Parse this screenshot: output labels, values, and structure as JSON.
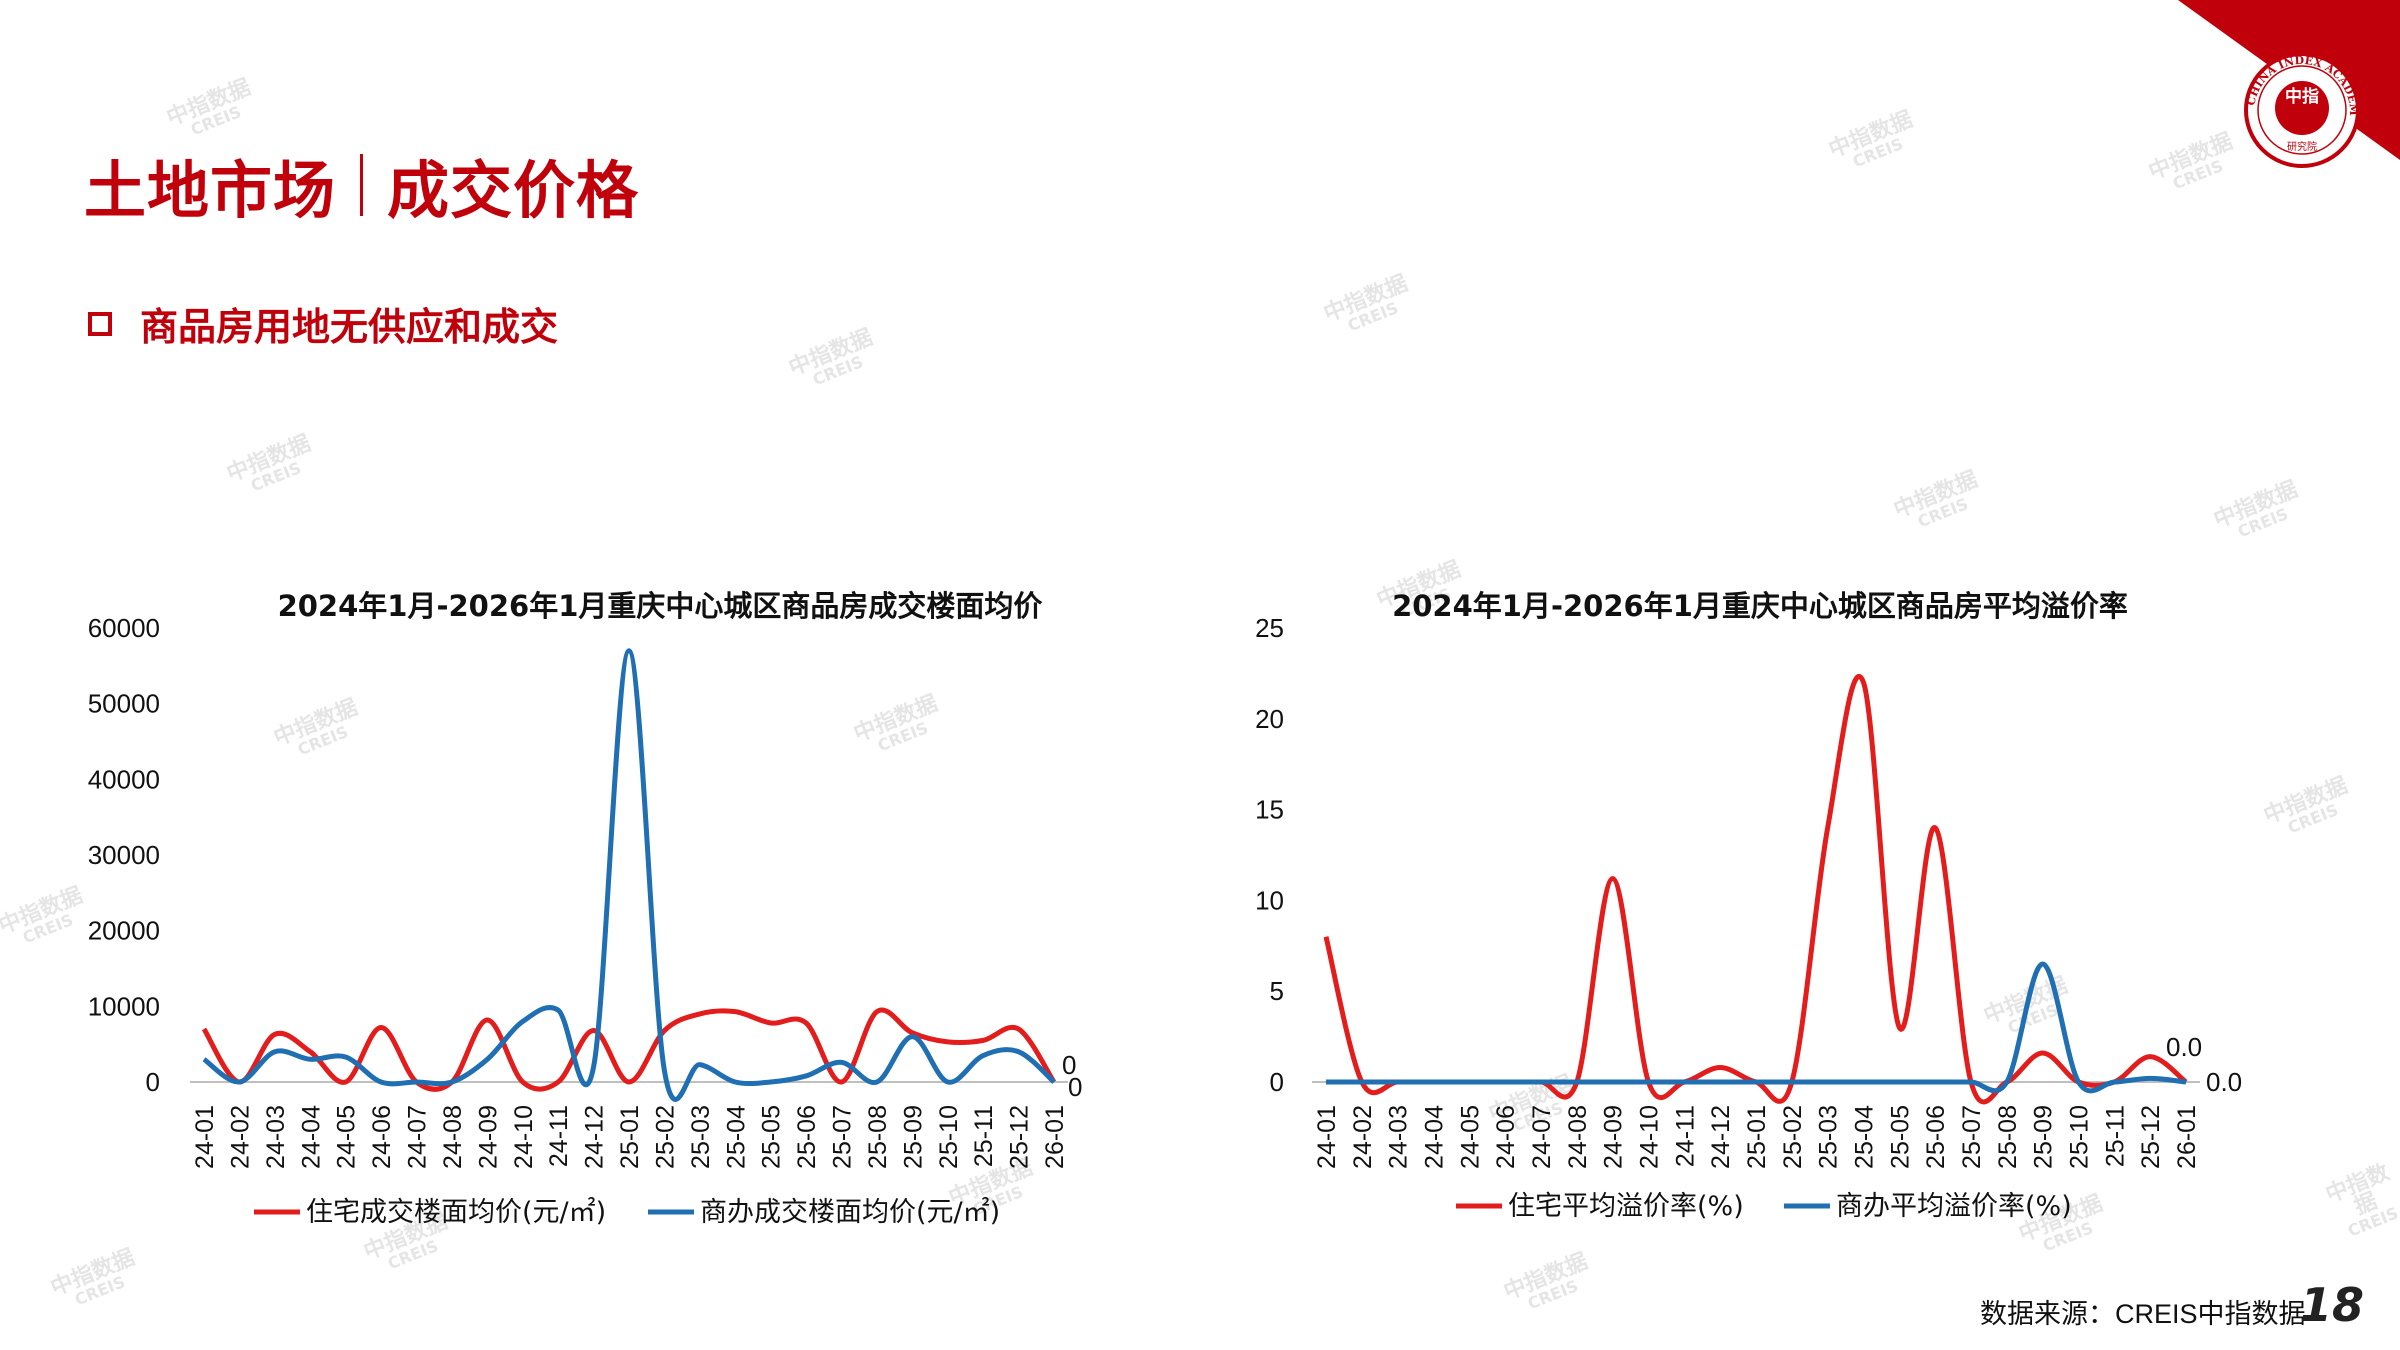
{
  "header": {
    "title_left": "土地市场",
    "title_right": "成交价格",
    "subtitle": "商品房用地无供应和成交"
  },
  "logo": {
    "text": "CHINA INDEX ACADEMY",
    "center": "中指",
    "bottom": "研究院"
  },
  "footer": {
    "source": "数据来源：CREIS中指数据",
    "page": "18"
  },
  "watermark": {
    "text": "中指数据",
    "sub": "CREIS"
  },
  "colors": {
    "red": "#e31c1c",
    "blue": "#1f6fb2",
    "brand": "#c0000a"
  },
  "chart_data": [
    {
      "type": "line",
      "title": "2024年1月-2026年1月重庆中心城区商品房成交楼面均价",
      "categories": [
        "24-01",
        "24-02",
        "24-03",
        "24-04",
        "24-05",
        "24-06",
        "24-07",
        "24-08",
        "24-09",
        "24-10",
        "24-11",
        "24-12",
        "25-01",
        "25-02",
        "25-03",
        "25-04",
        "25-05",
        "25-06",
        "25-07",
        "25-08",
        "25-09",
        "25-10",
        "25-11",
        "25-12",
        "26-01"
      ],
      "ylim": [
        0,
        60000
      ],
      "yticks": [
        "0",
        "10000",
        "20000",
        "30000",
        "40000",
        "50000",
        "60000"
      ],
      "series": [
        {
          "name": "住宅成交楼面均价(元/㎡)",
          "color": "#e31c1c",
          "values": [
            7000,
            0,
            6300,
            4000,
            0,
            7200,
            0,
            0,
            8200,
            0,
            0,
            6800,
            0,
            6800,
            9000,
            9300,
            7800,
            7800,
            0,
            9300,
            6500,
            5300,
            5500,
            7000,
            0
          ]
        },
        {
          "name": "商办成交楼面均价(元/㎡)",
          "color": "#1f6fb2",
          "values": [
            3000,
            0,
            4000,
            3000,
            3300,
            0,
            0,
            0,
            3000,
            8000,
            9500,
            2000,
            57000,
            1500,
            2300,
            0,
            0,
            800,
            2600,
            0,
            6000,
            0,
            3500,
            4000,
            0
          ]
        }
      ],
      "end_labels": [
        "0",
        "0"
      ]
    },
    {
      "type": "line",
      "title": "2024年1月-2026年1月重庆中心城区商品房平均溢价率",
      "categories": [
        "24-01",
        "24-02",
        "24-03",
        "24-04",
        "24-05",
        "24-06",
        "24-07",
        "24-08",
        "24-09",
        "24-10",
        "24-11",
        "24-12",
        "25-01",
        "25-02",
        "25-03",
        "25-04",
        "25-05",
        "25-06",
        "25-07",
        "25-08",
        "25-09",
        "25-10",
        "25-11",
        "25-12",
        "26-01"
      ],
      "ylim": [
        0,
        25
      ],
      "yticks": [
        "0",
        "5",
        "10",
        "15",
        "20",
        "25"
      ],
      "series": [
        {
          "name": "住宅平均溢价率(%)",
          "color": "#e31c1c",
          "values": [
            8,
            0,
            0,
            0,
            0,
            0,
            0,
            0,
            11.2,
            0,
            0,
            0.8,
            0,
            0,
            14,
            22,
            3,
            14,
            0,
            0,
            1.6,
            0,
            0,
            1.4,
            0
          ]
        },
        {
          "name": "商办平均溢价率(%)",
          "color": "#1f6fb2",
          "values": [
            0,
            0,
            0,
            0,
            0,
            0,
            0,
            0,
            0,
            0,
            0,
            0,
            0,
            0,
            0,
            0,
            0,
            0,
            0,
            0,
            6.5,
            0,
            0,
            0.2,
            0
          ]
        }
      ],
      "end_labels": [
        "0.0",
        "0.0"
      ]
    }
  ]
}
